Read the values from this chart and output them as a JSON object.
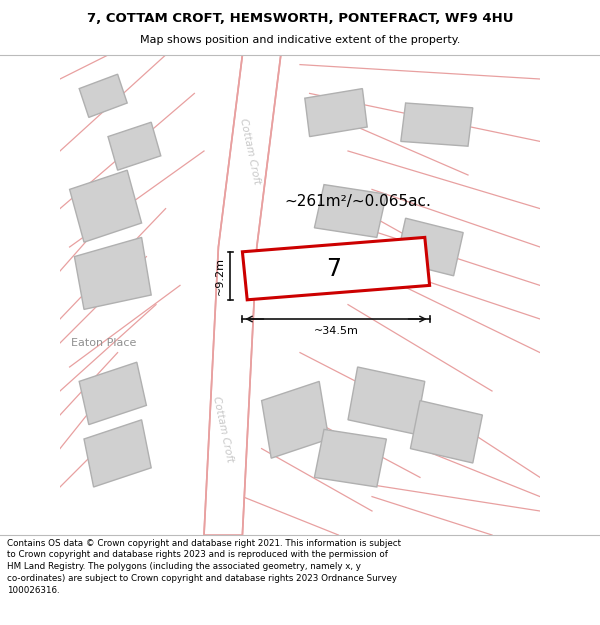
{
  "title_line1": "7, COTTAM CROFT, HEMSWORTH, PONTEFRACT, WF9 4HU",
  "title_line2": "Map shows position and indicative extent of the property.",
  "footer_text": "Contains OS data © Crown copyright and database right 2021. This information is subject\nto Crown copyright and database rights 2023 and is reproduced with the permission of\nHM Land Registry. The polygons (including the associated geometry, namely x, y\nco-ordinates) are subject to Crown copyright and database rights 2023 Ordnance Survey\n100026316.",
  "area_label": "~261m²/~0.065ac.",
  "width_label": "~34.5m",
  "height_label": "~9.2m",
  "plot_number": "7",
  "road_name_top": "Cottam Croft",
  "road_name_bottom": "Cottam Croft",
  "street_name": "Eaton Place",
  "map_bg": "#f0f0f0",
  "title_bg": "#ffffff",
  "footer_bg": "#ffffff",
  "road_fill": "#ffffff",
  "road_color": "#e8a0a0",
  "building_fill": "#d0d0d0",
  "building_stroke": "#b0b0b0",
  "plot_stroke": "#cc0000",
  "dim_color": "#111111",
  "road_label_color": "#c0c0c0",
  "street_label_color": "#888888"
}
